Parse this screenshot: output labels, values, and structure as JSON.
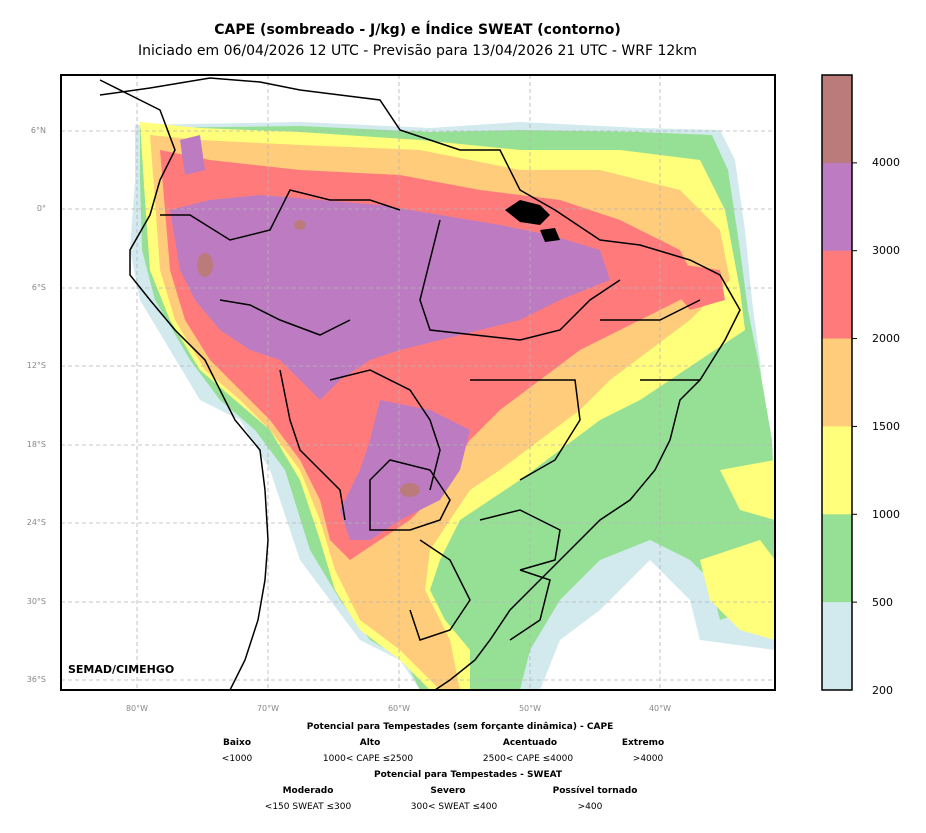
{
  "title": "CAPE (sombreado - J/kg) e Índice SWEAT (contorno)",
  "subtitle": "Iniciado em 06/04/2026 12 UTC - Previsão para 13/04/2026 21 UTC - WRF 12km",
  "credit": "SEMAD/CIMEHGO",
  "lat_labels": [
    "6°N",
    "0°",
    "6°S",
    "12°S",
    "18°S",
    "24°S",
    "30°S",
    "36°S"
  ],
  "lon_labels": [
    "80°W",
    "70°W",
    "60°W",
    "50°W",
    "40°W"
  ],
  "colorbar": {
    "labels": [
      "4000",
      "3000",
      "2000",
      "1500",
      "1000",
      "500",
      "200"
    ],
    "colors": [
      "#bc7b7b",
      "#bd7bc2",
      "#ff7b7b",
      "#ffcc7b",
      "#ffff7b",
      "#96e096",
      "#d2e9ee"
    ]
  },
  "legend": {
    "cape_title": "Potencial para Tempestades (sem forçante dinâmica) - CAPE",
    "cape_cats": [
      "Baixo",
      "Alto",
      "Acentuado",
      "Extremo"
    ],
    "cape_ranges": [
      "<1000",
      "1000< CAPE ≤2500",
      "2500< CAPE ≤4000",
      ">4000"
    ],
    "sweat_title": "Potencial para Tempestades - SWEAT",
    "sweat_cats": [
      "Moderado",
      "Severo",
      "Possível tornado"
    ],
    "sweat_ranges": [
      "<150 SWEAT ≤300",
      "300< SWEAT ≤400",
      ">400"
    ]
  }
}
